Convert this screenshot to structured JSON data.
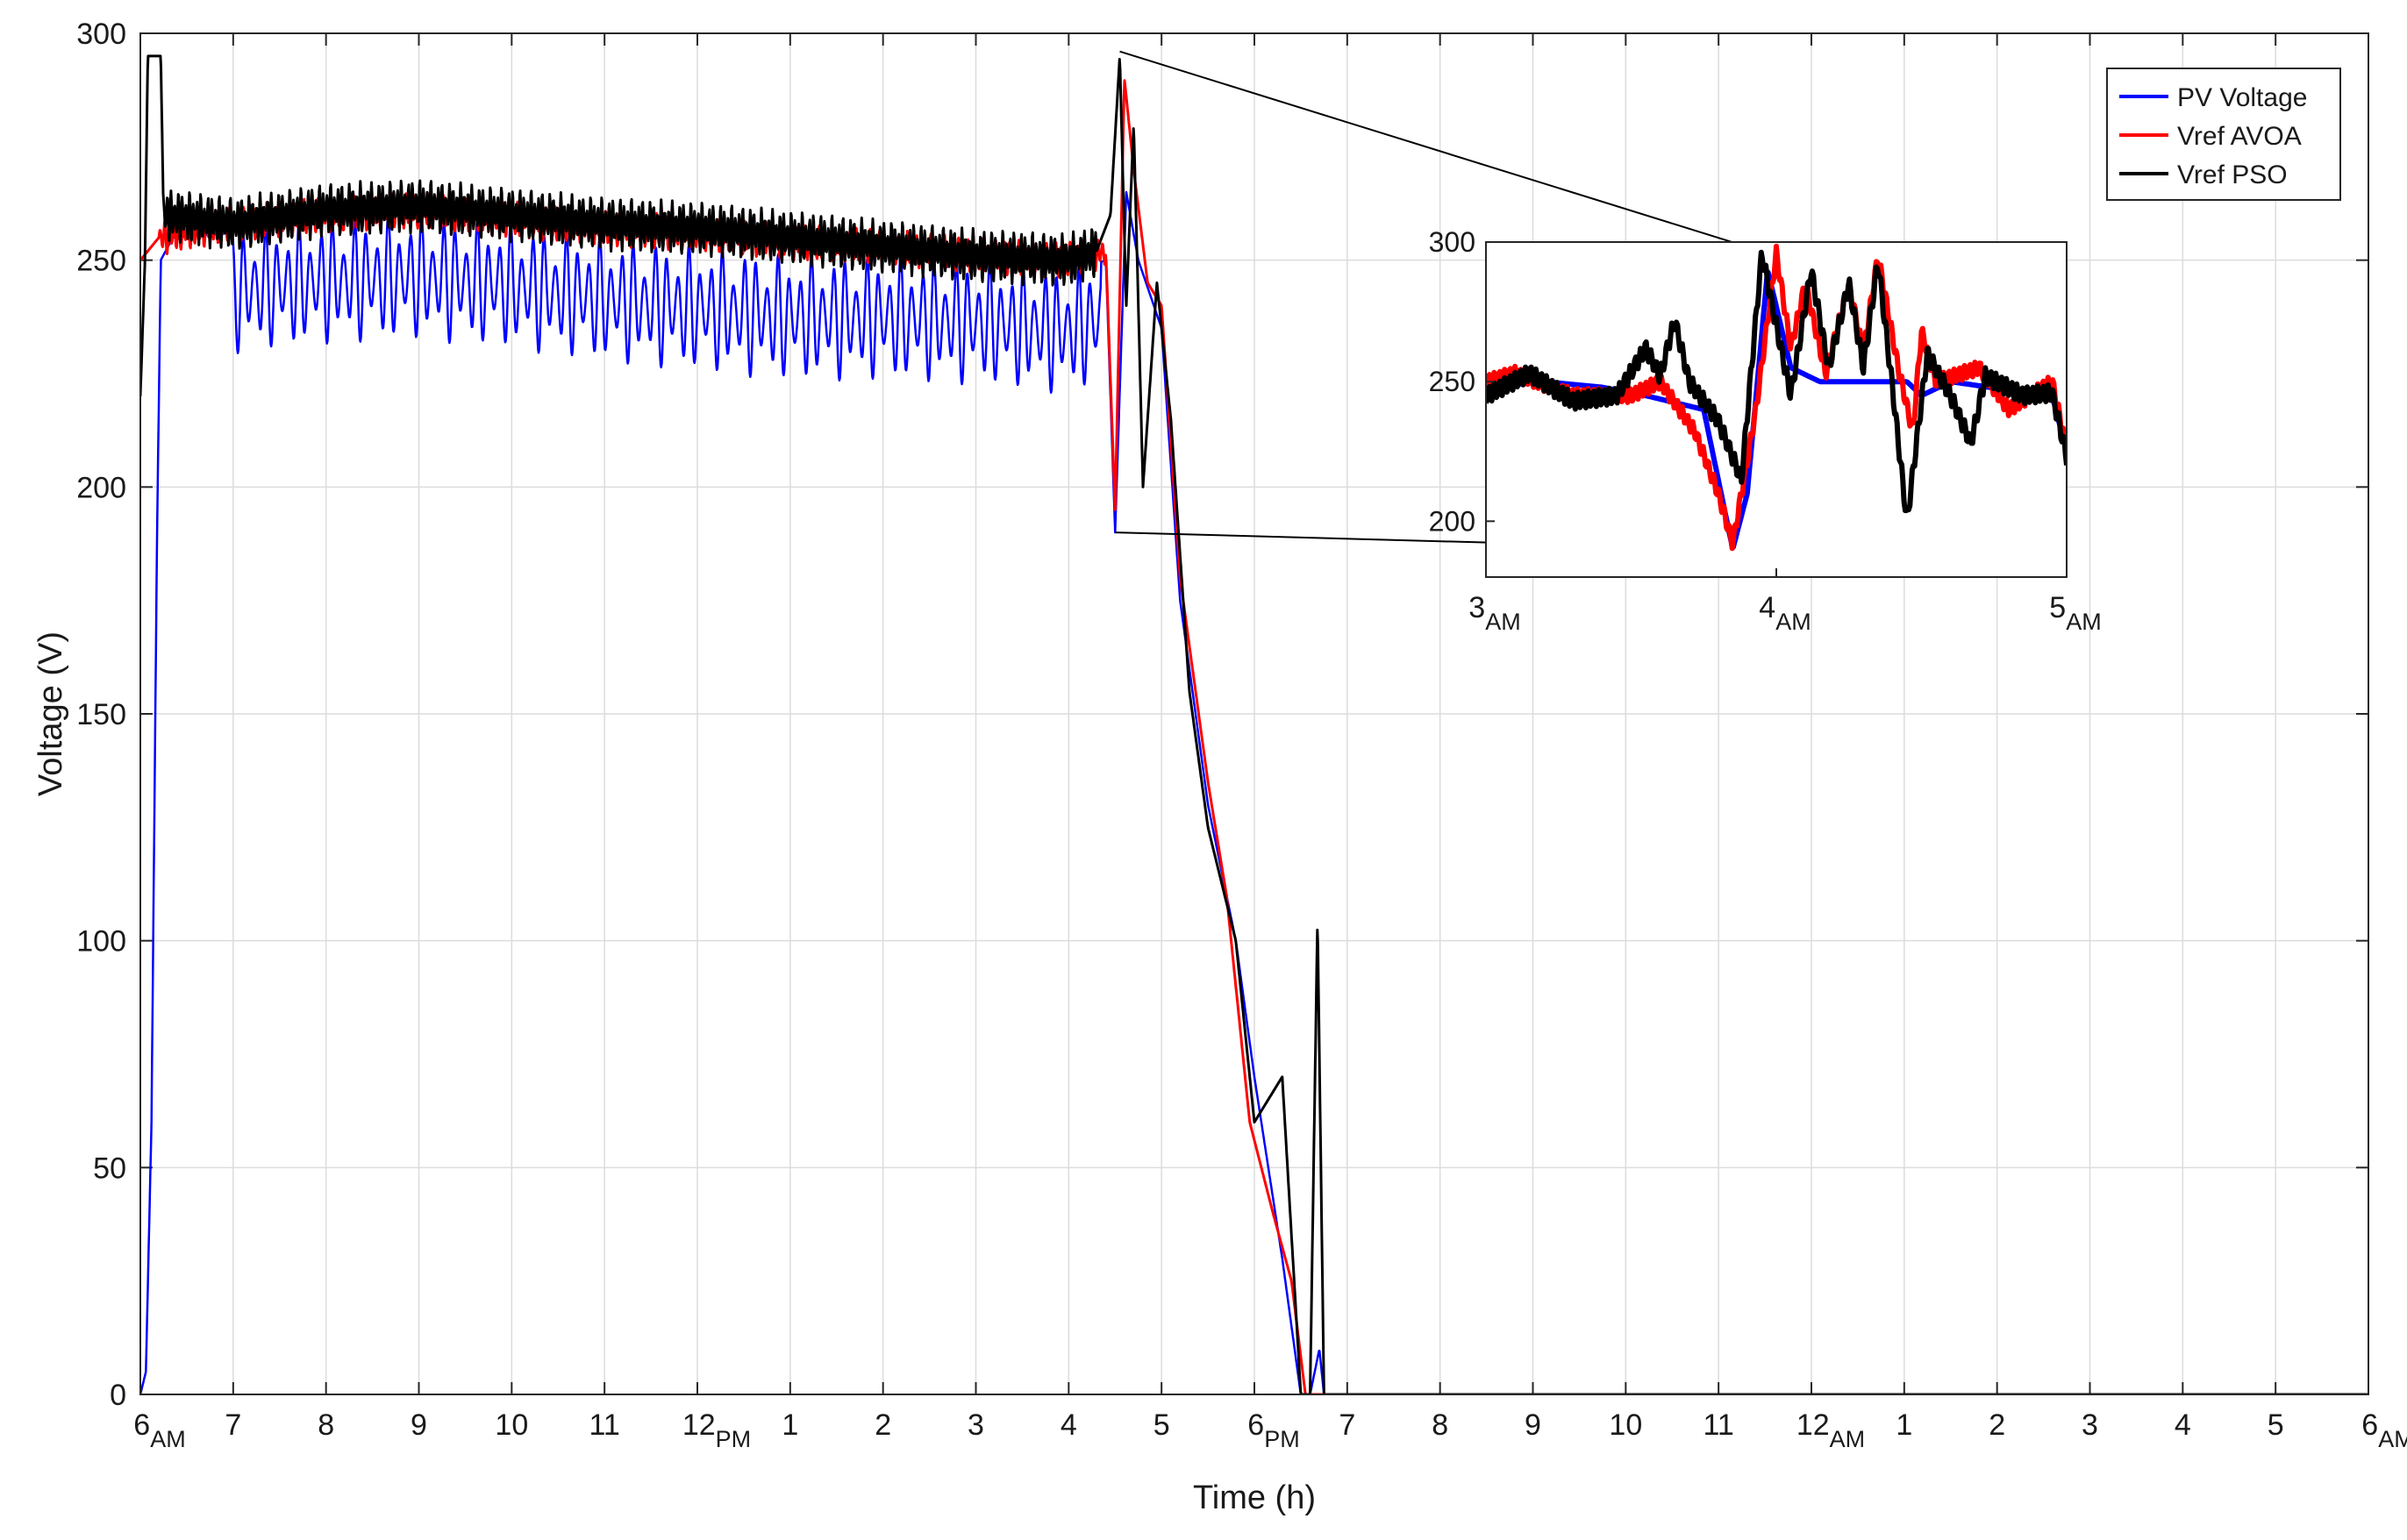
{
  "chart_data": {
    "type": "line",
    "title": "",
    "xlabel": "Time (h)",
    "ylabel": "Voltage (V)",
    "xlim": [
      0,
      24
    ],
    "ylim": [
      0,
      300
    ],
    "grid": true,
    "legend_position": "top-right",
    "x_ticks": [
      {
        "main": "6",
        "sub": "AM"
      },
      {
        "main": "7",
        "sub": ""
      },
      {
        "main": "8",
        "sub": ""
      },
      {
        "main": "9",
        "sub": ""
      },
      {
        "main": "10",
        "sub": ""
      },
      {
        "main": "11",
        "sub": ""
      },
      {
        "main": "12",
        "sub": "PM"
      },
      {
        "main": "1",
        "sub": ""
      },
      {
        "main": "2",
        "sub": ""
      },
      {
        "main": "3",
        "sub": ""
      },
      {
        "main": "4",
        "sub": ""
      },
      {
        "main": "5",
        "sub": ""
      },
      {
        "main": "6",
        "sub": "PM"
      },
      {
        "main": "7",
        "sub": ""
      },
      {
        "main": "8",
        "sub": ""
      },
      {
        "main": "9",
        "sub": ""
      },
      {
        "main": "10",
        "sub": ""
      },
      {
        "main": "11",
        "sub": ""
      },
      {
        "main": "12",
        "sub": "AM"
      },
      {
        "main": "1",
        "sub": ""
      },
      {
        "main": "2",
        "sub": ""
      },
      {
        "main": "3",
        "sub": ""
      },
      {
        "main": "4",
        "sub": ""
      },
      {
        "main": "5",
        "sub": ""
      },
      {
        "main": "6",
        "sub": "AM"
      }
    ],
    "y_ticks": [
      "0",
      "50",
      "100",
      "150",
      "200",
      "250",
      "300"
    ],
    "series": [
      {
        "name": "PV Voltage",
        "color": "#0000ff",
        "points": [
          [
            0,
            0
          ],
          [
            0.06,
            5
          ],
          [
            0.12,
            60
          ],
          [
            0.18,
            190
          ],
          [
            0.22,
            250
          ],
          [
            0.35,
            255
          ],
          [
            1,
            256
          ],
          [
            2,
            258
          ],
          [
            3,
            259
          ],
          [
            4,
            257
          ],
          [
            5,
            254
          ],
          [
            6,
            252
          ],
          [
            7,
            250
          ],
          [
            8,
            250
          ],
          [
            9,
            249
          ],
          [
            10,
            247
          ],
          [
            10.4,
            250
          ],
          [
            10.5,
            190
          ],
          [
            10.62,
            265
          ],
          [
            10.75,
            250
          ],
          [
            11,
            235
          ],
          [
            11.2,
            175
          ],
          [
            11.5,
            130
          ],
          [
            11.8,
            100
          ],
          [
            12.0,
            70
          ],
          [
            12.3,
            30
          ],
          [
            12.5,
            0
          ],
          [
            12.6,
            0
          ],
          [
            12.7,
            10
          ],
          [
            12.75,
            0
          ],
          [
            24,
            0
          ]
        ],
        "osc_amp": 14,
        "osc_period": 0.12,
        "osc_start": 1,
        "osc_end": 10.35
      },
      {
        "name": "Vref AVOA",
        "color": "#ff0000",
        "points": [
          [
            0,
            250
          ],
          [
            0.2,
            255
          ],
          [
            1,
            258
          ],
          [
            2,
            260
          ],
          [
            3,
            261
          ],
          [
            4,
            259
          ],
          [
            5,
            257
          ],
          [
            6,
            256
          ],
          [
            7,
            254
          ],
          [
            8,
            253
          ],
          [
            9,
            251
          ],
          [
            10,
            250
          ],
          [
            10.4,
            252
          ],
          [
            10.5,
            195
          ],
          [
            10.6,
            290
          ],
          [
            10.7,
            270
          ],
          [
            10.85,
            245
          ],
          [
            11,
            240
          ],
          [
            11.2,
            180
          ],
          [
            11.5,
            135
          ],
          [
            11.7,
            110
          ],
          [
            11.95,
            60
          ],
          [
            12.2,
            40
          ],
          [
            12.4,
            25
          ],
          [
            12.55,
            0
          ],
          [
            24,
            0
          ]
        ],
        "osc_amp": 4,
        "osc_period": 0.05,
        "osc_start": 0.2,
        "osc_end": 10.4
      },
      {
        "name": "Vref PSO",
        "color": "#000000",
        "points": [
          [
            0,
            220
          ],
          [
            0.05,
            250
          ],
          [
            0.08,
            295
          ],
          [
            0.22,
            295
          ],
          [
            0.25,
            260
          ],
          [
            1,
            258
          ],
          [
            2,
            261
          ],
          [
            3,
            262
          ],
          [
            4,
            260
          ],
          [
            5,
            258
          ],
          [
            6,
            257
          ],
          [
            7,
            255
          ],
          [
            8,
            253
          ],
          [
            9,
            251
          ],
          [
            10,
            250
          ],
          [
            10.3,
            252
          ],
          [
            10.45,
            260
          ],
          [
            10.55,
            295
          ],
          [
            10.62,
            240
          ],
          [
            10.7,
            280
          ],
          [
            10.8,
            200
          ],
          [
            10.95,
            245
          ],
          [
            11.1,
            215
          ],
          [
            11.3,
            155
          ],
          [
            11.5,
            125
          ],
          [
            11.8,
            100
          ],
          [
            12.0,
            60
          ],
          [
            12.3,
            70
          ],
          [
            12.5,
            0
          ],
          [
            12.6,
            0
          ],
          [
            12.68,
            105
          ],
          [
            12.75,
            0
          ],
          [
            24,
            0
          ]
        ],
        "osc_amp": 6,
        "osc_period": 0.04,
        "osc_start": 0.25,
        "osc_end": 10.3
      }
    ],
    "inset": {
      "xlim": [
        3,
        5
      ],
      "ylim": [
        180,
        300
      ],
      "x_ticks": [
        {
          "main": "3",
          "sub": "AM"
        },
        {
          "main": "4",
          "sub": "AM"
        },
        {
          "main": "5",
          "sub": "AM"
        }
      ],
      "y_ticks": [
        "200",
        "250",
        "300"
      ],
      "series": [
        {
          "name": "PV Voltage",
          "points": [
            [
              3,
              248
            ],
            [
              3.2,
              250
            ],
            [
              3.4,
              248
            ],
            [
              3.55,
              245
            ],
            [
              3.75,
              240
            ],
            [
              3.85,
              190
            ],
            [
              3.9,
              210
            ],
            [
              3.97,
              290
            ],
            [
              4.05,
              255
            ],
            [
              4.15,
              250
            ],
            [
              4.35,
              250
            ],
            [
              4.45,
              250
            ],
            [
              4.5,
              245
            ],
            [
              4.6,
              250
            ],
            [
              4.8,
              247
            ],
            [
              4.95,
              245
            ],
            [
              5,
              225
            ]
          ]
        },
        {
          "name": "Vref AVOA",
          "points": [
            [
              3,
              250
            ],
            [
              3.1,
              253
            ],
            [
              3.3,
              245
            ],
            [
              3.5,
              245
            ],
            [
              3.6,
              250
            ],
            [
              3.72,
              232
            ],
            [
              3.8,
              210
            ],
            [
              3.85,
              192
            ],
            [
              3.93,
              240
            ],
            [
              4.0,
              296
            ],
            [
              4.05,
              262
            ],
            [
              4.1,
              285
            ],
            [
              4.17,
              253
            ],
            [
              4.25,
              285
            ],
            [
              4.3,
              260
            ],
            [
              4.35,
              295
            ],
            [
              4.42,
              255
            ],
            [
              4.47,
              232
            ],
            [
              4.5,
              268
            ],
            [
              4.55,
              250
            ],
            [
              4.7,
              255
            ],
            [
              4.8,
              240
            ],
            [
              4.95,
              250
            ],
            [
              5,
              226
            ]
          ]
        },
        {
          "name": "Vref PSO",
          "points": [
            [
              3,
              245
            ],
            [
              3.15,
              253
            ],
            [
              3.3,
              243
            ],
            [
              3.45,
              245
            ],
            [
              3.55,
              262
            ],
            [
              3.6,
              252
            ],
            [
              3.65,
              272
            ],
            [
              3.7,
              250
            ],
            [
              3.8,
              236
            ],
            [
              3.88,
              215
            ],
            [
              3.95,
              296
            ],
            [
              4.0,
              270
            ],
            [
              4.05,
              245
            ],
            [
              4.12,
              290
            ],
            [
              4.18,
              255
            ],
            [
              4.25,
              285
            ],
            [
              4.3,
              255
            ],
            [
              4.35,
              293
            ],
            [
              4.4,
              248
            ],
            [
              4.45,
              200
            ],
            [
              4.52,
              260
            ],
            [
              4.6,
              245
            ],
            [
              4.67,
              228
            ],
            [
              4.72,
              252
            ],
            [
              4.85,
              245
            ],
            [
              4.95,
              246
            ],
            [
              5,
              223
            ]
          ]
        }
      ]
    }
  }
}
